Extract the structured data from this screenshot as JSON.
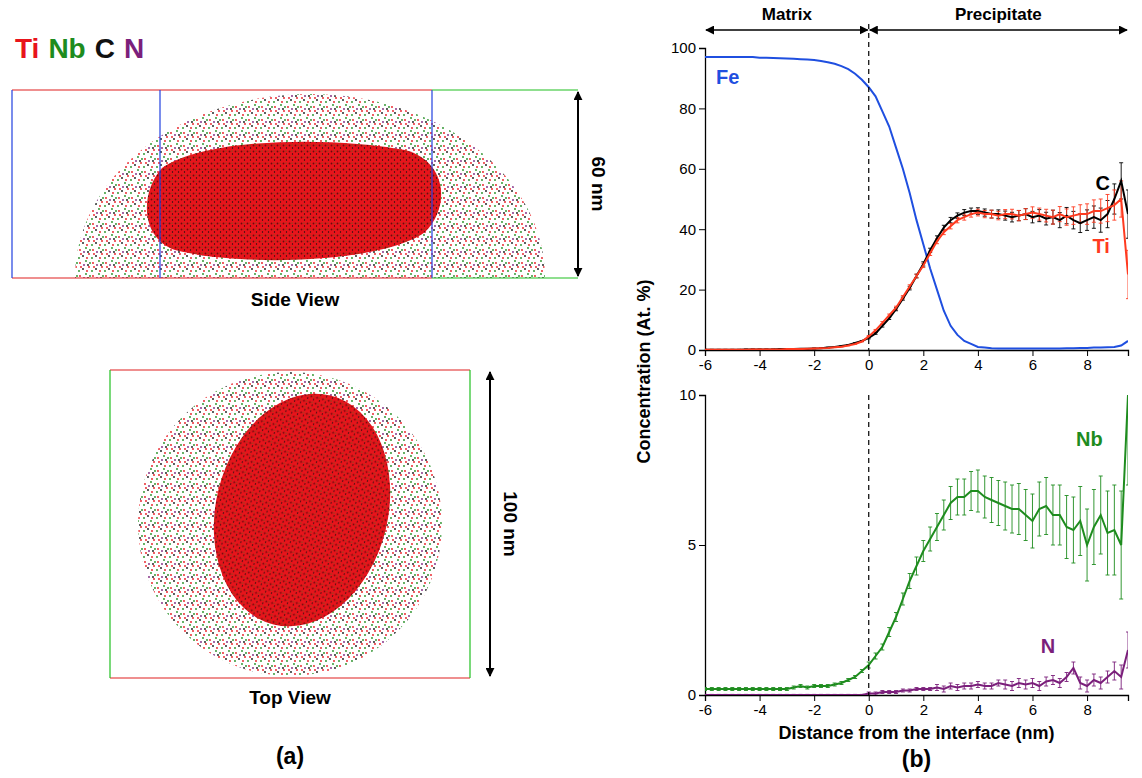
{
  "figure": {
    "panel_a": {
      "letter": "(a)",
      "legend": [
        {
          "name": "Ti",
          "color": "#e8141b"
        },
        {
          "name": "Nb",
          "color": "#1e8c1e"
        },
        {
          "name": "C",
          "color": "#111111"
        },
        {
          "name": "N",
          "color": "#7b1f7b"
        }
      ],
      "views": [
        {
          "title": "Side View",
          "scale": "60 nm"
        },
        {
          "title": "Top View",
          "scale": "100 nm"
        }
      ]
    },
    "panel_b": {
      "letter": "(b)",
      "y_label": "Concentration (At. %)",
      "regions": [
        {
          "label": "Matrix",
          "from": -6,
          "to": 0
        },
        {
          "label": "Precipitate",
          "from": 0,
          "to": 9.5
        }
      ]
    }
  },
  "chart_data": [
    {
      "type": "line",
      "x": [
        -6,
        -5.75,
        -5.5,
        -5.25,
        -5,
        -4.75,
        -4.5,
        -4.25,
        -4,
        -3.75,
        -3.5,
        -3.25,
        -3,
        -2.75,
        -2.5,
        -2.25,
        -2,
        -1.75,
        -1.5,
        -1.25,
        -1,
        -0.75,
        -0.5,
        -0.25,
        0,
        0.25,
        0.5,
        0.75,
        1,
        1.25,
        1.5,
        1.75,
        2,
        2.25,
        2.5,
        2.75,
        3,
        3.25,
        3.5,
        3.75,
        4,
        4.25,
        4.5,
        4.75,
        5,
        5.25,
        5.5,
        5.75,
        6,
        6.25,
        6.5,
        6.75,
        7,
        7.25,
        7.5,
        7.75,
        8,
        8.25,
        8.5,
        8.75,
        9,
        9.25,
        9.5
      ],
      "xlim": [
        -6,
        9.5
      ],
      "xticks": [
        -6,
        -4,
        -2,
        0,
        2,
        4,
        6,
        8
      ],
      "ylim": [
        0,
        100
      ],
      "yticks": [
        0,
        20,
        40,
        60,
        80,
        100
      ],
      "series": [
        {
          "name": "Fe",
          "color": "#1f4fe0",
          "values": [
            97,
            97,
            97,
            97,
            97,
            97,
            97,
            97,
            96.8,
            96.8,
            96.7,
            96.6,
            96.5,
            96.4,
            96.3,
            96.2,
            96,
            95.7,
            95.3,
            94.8,
            94,
            93,
            91.5,
            89.5,
            87,
            84,
            79,
            74,
            67,
            60,
            52,
            43,
            35,
            27,
            20,
            13,
            8,
            5,
            3,
            2,
            1,
            0.8,
            0.6,
            0.5,
            0.5,
            0.5,
            0.5,
            0.5,
            0.5,
            0.5,
            0.5,
            0.5,
            0.5,
            0.6,
            0.6,
            0.7,
            0.7,
            0.8,
            0.8,
            0.9,
            1,
            1.5,
            3
          ]
        },
        {
          "name": "C",
          "color": "#000000",
          "values": [
            0.1,
            0.1,
            0.1,
            0.1,
            0.1,
            0.1,
            0.2,
            0.2,
            0.2,
            0.2,
            0.2,
            0.3,
            0.3,
            0.3,
            0.4,
            0.4,
            0.5,
            0.6,
            0.8,
            1,
            1.3,
            1.7,
            2.3,
            3,
            4,
            5.5,
            8,
            10.5,
            13.5,
            17,
            20.5,
            24.5,
            28.5,
            33,
            37,
            40.5,
            43,
            44.5,
            45.5,
            46,
            46,
            45.5,
            45,
            45,
            44.5,
            44,
            44.5,
            45,
            44,
            44.5,
            43.5,
            44,
            43,
            44.5,
            43,
            42,
            43,
            44,
            43,
            45,
            50,
            56,
            45
          ],
          "errors": [
            0.1,
            0.1,
            0.1,
            0.1,
            0.1,
            0.1,
            0.1,
            0.1,
            0.1,
            0.1,
            0.1,
            0.1,
            0.1,
            0.1,
            0.1,
            0.1,
            0.1,
            0.1,
            0.1,
            0.1,
            0.1,
            0.1,
            0.1,
            0.1,
            0.3,
            0.3,
            0.4,
            0.4,
            0.5,
            0.5,
            0.6,
            0.6,
            0.7,
            0.7,
            0.8,
            0.8,
            0.9,
            0.9,
            1,
            1,
            1.1,
            1.2,
            1.3,
            1.4,
            1.5,
            1.6,
            1.7,
            1.8,
            1.9,
            2,
            2.1,
            2.3,
            2.5,
            2.7,
            2.9,
            3.1,
            3.4,
            3.7,
            4,
            4.5,
            5,
            6,
            8
          ]
        },
        {
          "name": "Ti",
          "color": "#ff3a1f",
          "values": [
            0.1,
            0.1,
            0.1,
            0.1,
            0.1,
            0.1,
            0.1,
            0.2,
            0.2,
            0.2,
            0.2,
            0.2,
            0.3,
            0.3,
            0.3,
            0.4,
            0.5,
            0.6,
            0.7,
            0.9,
            1.1,
            1.5,
            2,
            2.8,
            4.5,
            6.5,
            9,
            11.5,
            14,
            17.5,
            21,
            24.5,
            28,
            32,
            36,
            39,
            41,
            43,
            44,
            45,
            45.5,
            45,
            45,
            44.5,
            45,
            45,
            44.5,
            45,
            45.5,
            45,
            44.5,
            44,
            45,
            44,
            44.5,
            45,
            45,
            46,
            46,
            47,
            48,
            50,
            25
          ],
          "errors": [
            0.1,
            0.1,
            0.1,
            0.1,
            0.1,
            0.1,
            0.1,
            0.1,
            0.1,
            0.1,
            0.1,
            0.1,
            0.1,
            0.1,
            0.1,
            0.1,
            0.1,
            0.1,
            0.1,
            0.1,
            0.1,
            0.1,
            0.1,
            0.1,
            0.3,
            0.3,
            0.4,
            0.4,
            0.5,
            0.5,
            0.6,
            0.6,
            0.7,
            0.7,
            0.8,
            0.8,
            0.9,
            0.9,
            1,
            1,
            1.1,
            1.2,
            1.3,
            1.4,
            1.5,
            1.6,
            1.7,
            1.8,
            1.9,
            2,
            2.1,
            2.3,
            2.5,
            2.7,
            2.9,
            3.1,
            3.4,
            3.7,
            4,
            4.5,
            5,
            6,
            8
          ]
        }
      ]
    },
    {
      "type": "line",
      "x": [
        -6,
        -5.75,
        -5.5,
        -5.25,
        -5,
        -4.75,
        -4.5,
        -4.25,
        -4,
        -3.75,
        -3.5,
        -3.25,
        -3,
        -2.75,
        -2.5,
        -2.25,
        -2,
        -1.75,
        -1.5,
        -1.25,
        -1,
        -0.75,
        -0.5,
        -0.25,
        0,
        0.25,
        0.5,
        0.75,
        1,
        1.25,
        1.5,
        1.75,
        2,
        2.25,
        2.5,
        2.75,
        3,
        3.25,
        3.5,
        3.75,
        4,
        4.25,
        4.5,
        4.75,
        5,
        5.25,
        5.5,
        5.75,
        6,
        6.25,
        6.5,
        6.75,
        7,
        7.25,
        7.5,
        7.75,
        8,
        8.25,
        8.5,
        8.75,
        9,
        9.25,
        9.5
      ],
      "x_label": "Distance from the interface (nm)",
      "xlim": [
        -6,
        9.5
      ],
      "xticks": [
        -6,
        -4,
        -2,
        0,
        2,
        4,
        6,
        8
      ],
      "ylim": [
        0,
        10
      ],
      "yticks": [
        0,
        5,
        10
      ],
      "series": [
        {
          "name": "Nb",
          "color": "#1e8c1e",
          "values": [
            0.2,
            0.2,
            0.2,
            0.2,
            0.2,
            0.2,
            0.2,
            0.2,
            0.2,
            0.2,
            0.2,
            0.2,
            0.2,
            0.25,
            0.3,
            0.25,
            0.3,
            0.3,
            0.3,
            0.35,
            0.4,
            0.5,
            0.6,
            0.8,
            1,
            1.3,
            1.6,
            2.1,
            2.6,
            3.2,
            3.8,
            4.3,
            4.8,
            5.2,
            5.6,
            6,
            6.4,
            6.6,
            6.6,
            6.8,
            6.8,
            6.6,
            6.5,
            6.4,
            6.3,
            6.2,
            6.2,
            6,
            5.8,
            6.2,
            6.3,
            6,
            6,
            5.6,
            5.5,
            5.8,
            5,
            5.6,
            6,
            5.4,
            5.5,
            5,
            10
          ],
          "errors": [
            0.05,
            0.05,
            0.05,
            0.05,
            0.05,
            0.05,
            0.05,
            0.05,
            0.05,
            0.05,
            0.05,
            0.05,
            0.05,
            0.05,
            0.05,
            0.05,
            0.05,
            0.05,
            0.05,
            0.05,
            0.05,
            0.05,
            0.05,
            0.05,
            0.1,
            0.1,
            0.1,
            0.15,
            0.15,
            0.2,
            0.25,
            0.3,
            0.35,
            0.4,
            0.45,
            0.5,
            0.55,
            0.6,
            0.6,
            0.65,
            0.7,
            0.7,
            0.75,
            0.75,
            0.8,
            0.8,
            0.85,
            0.85,
            0.9,
            0.9,
            0.95,
            1,
            1,
            1.05,
            1.1,
            1.15,
            1.2,
            1.25,
            1.3,
            1.4,
            1.5,
            1.8,
            3
          ]
        },
        {
          "name": "N",
          "color": "#7b1f7b",
          "values": [
            0,
            0,
            0,
            0,
            0,
            0,
            0,
            0,
            0,
            0,
            0,
            0,
            0,
            0,
            0,
            0,
            0,
            0,
            0,
            0,
            0,
            0,
            0,
            0,
            0.05,
            0.05,
            0.1,
            0.1,
            0.1,
            0.15,
            0.15,
            0.2,
            0.2,
            0.2,
            0.25,
            0.2,
            0.3,
            0.25,
            0.3,
            0.3,
            0.35,
            0.3,
            0.3,
            0.4,
            0.35,
            0.3,
            0.4,
            0.35,
            0.4,
            0.3,
            0.45,
            0.5,
            0.4,
            0.6,
            0.9,
            0.4,
            0.3,
            0.5,
            0.4,
            0.6,
            0.8,
            0.6,
            1.5
          ],
          "errors": [
            0.02,
            0.02,
            0.02,
            0.02,
            0.02,
            0.02,
            0.02,
            0.02,
            0.02,
            0.02,
            0.02,
            0.02,
            0.02,
            0.02,
            0.02,
            0.02,
            0.02,
            0.02,
            0.02,
            0.02,
            0.02,
            0.02,
            0.02,
            0.02,
            0.05,
            0.05,
            0.05,
            0.05,
            0.05,
            0.05,
            0.05,
            0.05,
            0.05,
            0.05,
            0.1,
            0.1,
            0.1,
            0.1,
            0.1,
            0.1,
            0.1,
            0.1,
            0.1,
            0.1,
            0.15,
            0.15,
            0.15,
            0.15,
            0.15,
            0.15,
            0.15,
            0.15,
            0.15,
            0.15,
            0.2,
            0.2,
            0.2,
            0.2,
            0.2,
            0.2,
            0.3,
            0.4,
            0.6
          ]
        }
      ]
    }
  ]
}
